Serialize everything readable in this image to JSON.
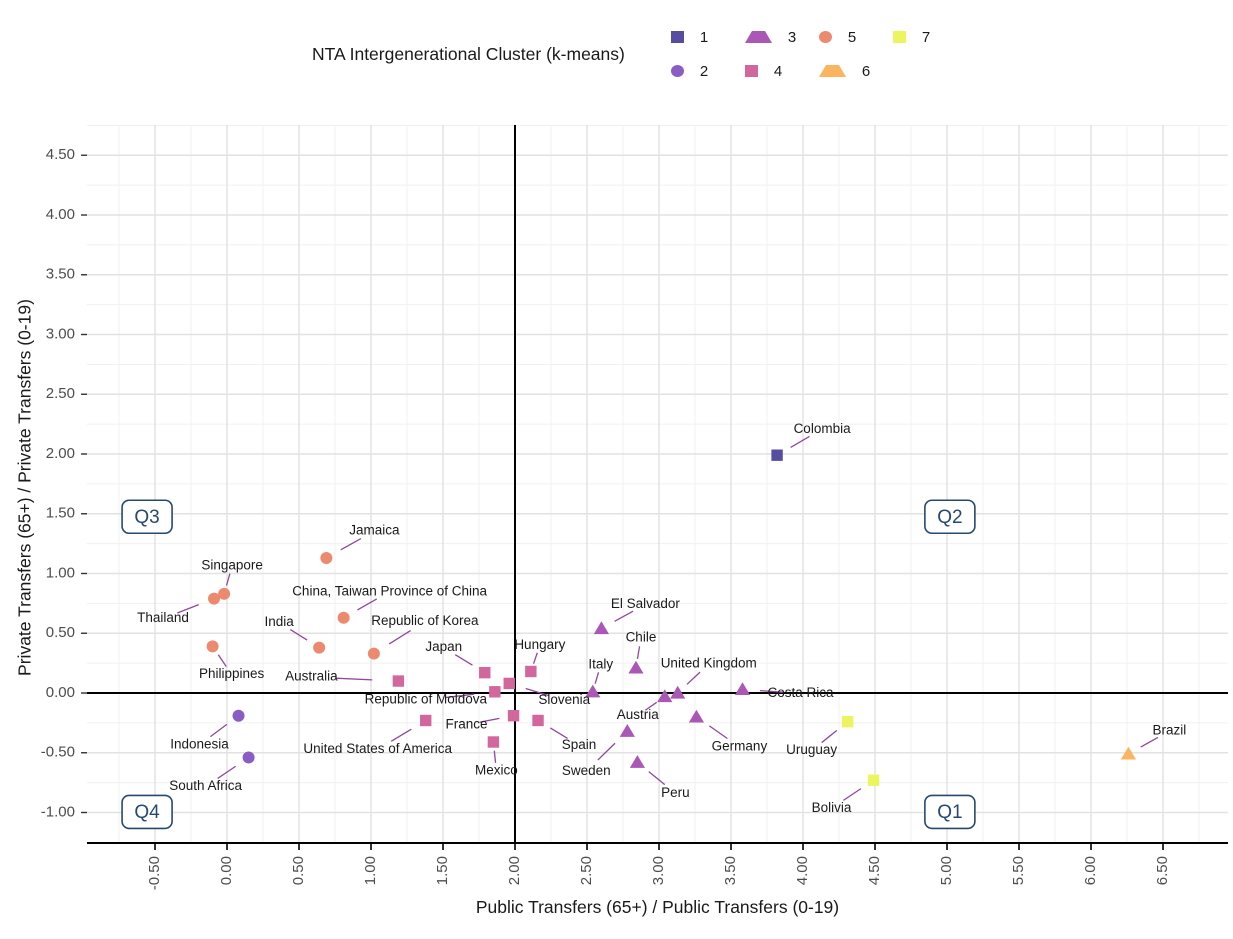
{
  "legend": {
    "title": "NTA Intergenerational Cluster (k-means)",
    "items": [
      {
        "label": "1",
        "shape": "square",
        "color": "#554d9f"
      },
      {
        "label": "2",
        "shape": "circle",
        "color": "#8a5cc4"
      },
      {
        "label": "3",
        "shape": "triangle",
        "color": "#aa57b6"
      },
      {
        "label": "4",
        "shape": "square",
        "color": "#d2679e"
      },
      {
        "label": "5",
        "shape": "circle",
        "color": "#ec8a70"
      },
      {
        "label": "6",
        "shape": "triangle",
        "color": "#fbb45f"
      },
      {
        "label": "7",
        "shape": "square",
        "color": "#edf55e"
      }
    ]
  },
  "chart_data": {
    "type": "scatter",
    "title": "NTA Intergenerational Cluster (k-means)",
    "xlabel": "Public Transfers (65+) / Public Transfers (0-19)",
    "ylabel": "Private Transfers (65+) / Private Transfers (0-19)",
    "xlim": [
      -0.97,
      6.95
    ],
    "ylim": [
      -1.27,
      4.75
    ],
    "grid": true,
    "legend_position": "top",
    "x_tick_labels": [
      "-0.50",
      "0.00",
      "0.50",
      "1.00",
      "1.50",
      "2.00",
      "2.50",
      "3.00",
      "3.50",
      "4.00",
      "4.50",
      "5.00",
      "5.50",
      "6.00",
      "6.50"
    ],
    "x_tick_values": [
      -0.5,
      0,
      0.5,
      1,
      1.5,
      2,
      2.5,
      3,
      3.5,
      4,
      4.5,
      5,
      5.5,
      6,
      6.5
    ],
    "y_tick_labels": [
      "4.50",
      "4.00",
      "3.50",
      "3.00",
      "2.50",
      "2.00",
      "1.50",
      "1.00",
      "0.50",
      "0.00",
      "-0.50",
      "-1.00"
    ],
    "y_tick_values": [
      4.5,
      4,
      3.5,
      3,
      2.5,
      2,
      1.5,
      1,
      0.5,
      0,
      -0.5,
      -1
    ],
    "reference_lines": {
      "vline_x": 2.0,
      "hline_y": 0.0
    },
    "quadrant_labels": [
      {
        "label": "Q3",
        "x": -0.555,
        "y": 1.475
      },
      {
        "label": "Q2",
        "x": 5.02,
        "y": 1.475
      },
      {
        "label": "Q4",
        "x": -0.555,
        "y": -0.995
      },
      {
        "label": "Q1",
        "x": 5.02,
        "y": -0.995
      }
    ],
    "series": [
      {
        "name": "1",
        "shape": "square",
        "color": "#554d9f",
        "points": [
          {
            "country": "Colombia",
            "x": 3.82,
            "y": 1.99,
            "ldx": 45,
            "ldy": -26
          }
        ]
      },
      {
        "name": "2",
        "shape": "circle",
        "color": "#8a5cc4",
        "points": [
          {
            "country": "Indonesia",
            "x": 0.08,
            "y": -0.19,
            "ldx": -39,
            "ldy": 29
          },
          {
            "country": "South Africa",
            "x": 0.15,
            "y": -0.54,
            "ldx": -43,
            "ldy": 29
          }
        ]
      },
      {
        "name": "3",
        "shape": "triangle",
        "color": "#aa57b6",
        "points": [
          {
            "country": "El Salvador",
            "x": 2.6,
            "y": 0.54,
            "ldx": 44,
            "ldy": -24
          },
          {
            "country": "Chile",
            "x": 2.84,
            "y": 0.21,
            "ldx": 5,
            "ldy": -30
          },
          {
            "country": "Italy",
            "x": 2.54,
            "y": 0.01,
            "ldx": 8,
            "ldy": -27
          },
          {
            "country": "United Kingdom",
            "x": 3.13,
            "y": 0.0,
            "ldx": 31,
            "ldy": -29
          },
          {
            "country": "Austria",
            "x": 3.04,
            "y": -0.03,
            "ldx": -27,
            "ldy": 19
          },
          {
            "country": "Costa Rica",
            "x": 3.58,
            "y": 0.03,
            "ldx": 58,
            "ldy": 4
          },
          {
            "country": "Germany",
            "x": 3.26,
            "y": -0.2,
            "ldx": 43,
            "ldy": 30
          },
          {
            "country": "Sweden",
            "x": 2.78,
            "y": -0.32,
            "ldx": -41,
            "ldy": 40
          },
          {
            "country": "Peru",
            "x": 2.85,
            "y": -0.58,
            "ldx": 38,
            "ldy": 31
          }
        ]
      },
      {
        "name": "4",
        "shape": "square",
        "color": "#d2679e",
        "points": [
          {
            "country": "Australia",
            "x": 1.19,
            "y": 0.1,
            "ldx": -87,
            "ldy": -4
          },
          {
            "country": "Japan",
            "x": 1.79,
            "y": 0.17,
            "ldx": -41,
            "ldy": -25
          },
          {
            "country": "Hungary",
            "x": 2.11,
            "y": 0.18,
            "ldx": 9,
            "ldy": -26
          },
          {
            "country": "Slovenia",
            "x": 1.96,
            "y": 0.08,
            "ldx": 55,
            "ldy": 17
          },
          {
            "country": "Republic of Moldova",
            "x": 1.86,
            "y": 0.01,
            "ldx": -69,
            "ldy": 8
          },
          {
            "country": "France",
            "x": 1.99,
            "y": -0.19,
            "ldx": -47,
            "ldy": 9
          },
          {
            "country": "Spain",
            "x": 2.16,
            "y": -0.23,
            "ldx": 41,
            "ldy": 25
          },
          {
            "country": "Mexico",
            "x": 1.85,
            "y": -0.41,
            "ldx": 3,
            "ldy": 29
          },
          {
            "country": "United States of America",
            "x": 1.38,
            "y": -0.23,
            "ldx": -48,
            "ldy": 29
          }
        ]
      },
      {
        "name": "5",
        "shape": "circle",
        "color": "#ec8a70",
        "points": [
          {
            "country": "Jamaica",
            "x": 0.69,
            "y": 1.13,
            "ldx": 48,
            "ldy": -27
          },
          {
            "country": "Singapore",
            "x": -0.02,
            "y": 0.83,
            "ldx": 8,
            "ldy": -28
          },
          {
            "country": "Thailand",
            "x": -0.09,
            "y": 0.79,
            "ldx": -51,
            "ldy": 20
          },
          {
            "country": "Philippines",
            "x": -0.1,
            "y": 0.39,
            "ldx": 19,
            "ldy": 28
          },
          {
            "country": "China, Taiwan Province of China",
            "x": 0.81,
            "y": 0.63,
            "ldx": 46,
            "ldy": -26
          },
          {
            "country": "India",
            "x": 0.64,
            "y": 0.38,
            "ldx": -40,
            "ldy": -25
          },
          {
            "country": "Republic of Korea",
            "x": 1.02,
            "y": 0.33,
            "ldx": 51,
            "ldy": -32
          }
        ]
      },
      {
        "name": "6",
        "shape": "triangle",
        "color": "#fbb45f",
        "points": [
          {
            "country": "Brazil",
            "x": 6.26,
            "y": -0.51,
            "ldx": 41,
            "ldy": -23
          }
        ]
      },
      {
        "name": "7",
        "shape": "square",
        "color": "#edf55e",
        "points": [
          {
            "country": "Uruguay",
            "x": 4.31,
            "y": -0.24,
            "ldx": -36,
            "ldy": 29
          },
          {
            "country": "Bolivia",
            "x": 4.49,
            "y": -0.73,
            "ldx": -42,
            "ldy": 28
          }
        ]
      }
    ],
    "style": {
      "grid_major_color": "#e2e2e2",
      "grid_minor_color": "#f0f0f0",
      "axis_line_color": "#000000",
      "reference_line_color": "#000000",
      "leader_line_color": "#90479c",
      "tick_text_color": "#4d4d4d",
      "label_text_color": "#1a1a1a",
      "quadrant_badge_color": "#26496f"
    }
  }
}
